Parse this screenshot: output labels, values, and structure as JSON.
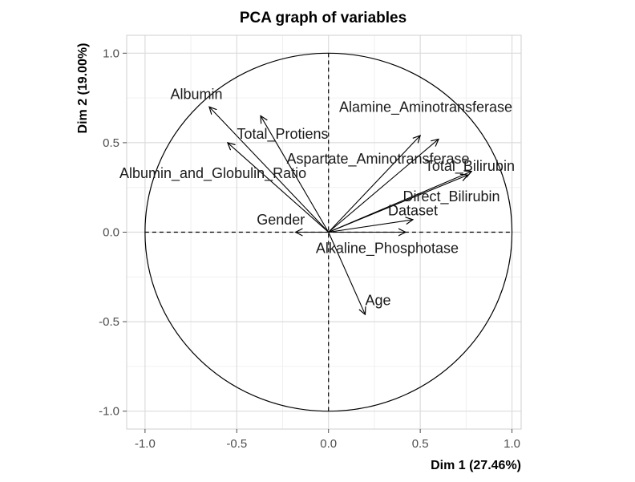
{
  "chart_data": {
    "type": "scatter",
    "subtype": "pca-variable-correlation-circle",
    "title": "PCA graph of variables",
    "xlabel": "Dim 1 (27.46%)",
    "ylabel": "Dim 2 (19.00%)",
    "xlim": [
      -1.1,
      1.05
    ],
    "ylim": [
      -1.1,
      1.1
    ],
    "x_ticks": [
      -1.0,
      -0.5,
      0.0,
      0.5,
      1.0
    ],
    "y_ticks": [
      -1.0,
      -0.5,
      0.0,
      0.5,
      1.0
    ],
    "x_tick_labels": [
      "-1.0",
      "-0.5",
      "0.0",
      "0.5",
      "1.0"
    ],
    "y_tick_labels": [
      "-1.0",
      "-0.5",
      "0.0",
      "0.5",
      "1.0"
    ],
    "grid": true,
    "unit_circle": true,
    "arrow_color": "#000000",
    "variables": [
      {
        "name": "Age",
        "x": 0.2,
        "y": -0.46
      },
      {
        "name": "Gender",
        "x": -0.18,
        "y": 0.0
      },
      {
        "name": "Total_Bilirubin",
        "x": 0.76,
        "y": 0.32
      },
      {
        "name": "Direct_Bilirubin",
        "x": 0.78,
        "y": 0.34
      },
      {
        "name": "Alkaline_Phosphotase",
        "x": 0.42,
        "y": 0.0
      },
      {
        "name": "Alamine_Aminotransferase",
        "x": 0.5,
        "y": 0.54
      },
      {
        "name": "Aspartate_Aminotransferase",
        "x": 0.6,
        "y": 0.52
      },
      {
        "name": "Total_Protiens",
        "x": -0.37,
        "y": 0.65
      },
      {
        "name": "Albumin",
        "x": -0.65,
        "y": 0.7
      },
      {
        "name": "Albumin_and_Globulin_Ratio",
        "x": -0.55,
        "y": 0.5
      },
      {
        "name": "Dataset",
        "x": 0.46,
        "y": 0.07
      }
    ],
    "labels": [
      {
        "text": "Albumin",
        "x": -0.72,
        "y": 0.77
      },
      {
        "text": "Alamine_Aminotransferase",
        "x": 0.53,
        "y": 0.7
      },
      {
        "text": "Total_Protiens",
        "x": -0.25,
        "y": 0.55
      },
      {
        "text": "Aspartate_Aminotransferase",
        "x": 0.27,
        "y": 0.41
      },
      {
        "text": "Total_Bilirubin",
        "x": 0.77,
        "y": 0.37
      },
      {
        "text": "Albumin_and_Globulin_Ratio",
        "x": -0.63,
        "y": 0.33
      },
      {
        "text": "Direct_Bilirubin",
        "x": 0.67,
        "y": 0.2
      },
      {
        "text": "Dataset",
        "x": 0.46,
        "y": 0.12
      },
      {
        "text": "Gender",
        "x": -0.26,
        "y": 0.07
      },
      {
        "text": "Alkaline_Phosphotase",
        "x": 0.32,
        "y": -0.09
      },
      {
        "text": "Age",
        "x": 0.27,
        "y": -0.38
      }
    ]
  }
}
